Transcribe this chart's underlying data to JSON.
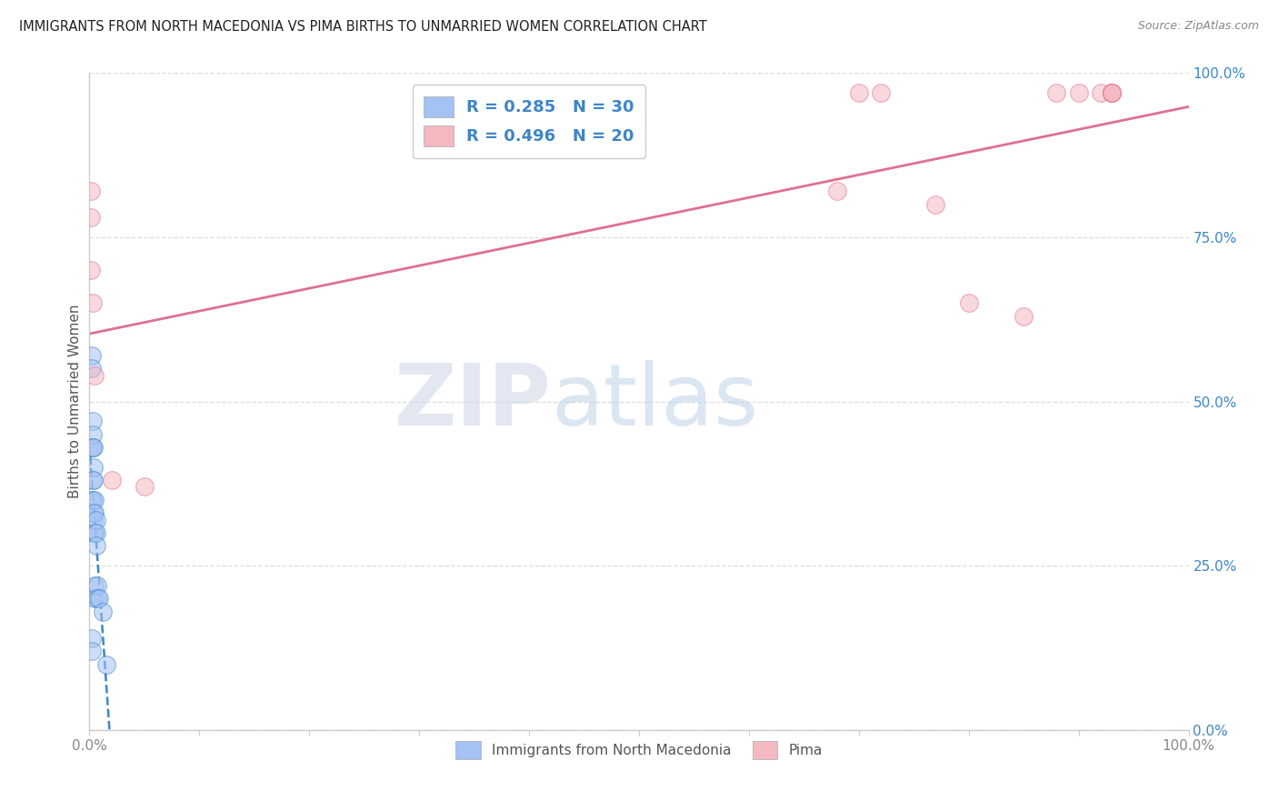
{
  "title": "IMMIGRANTS FROM NORTH MACEDONIA VS PIMA BIRTHS TO UNMARRIED WOMEN CORRELATION CHART",
  "source": "Source: ZipAtlas.com",
  "ylabel": "Births to Unmarried Women",
  "legend_label1": "Immigrants from North Macedonia",
  "legend_label2": "Pima",
  "r1": 0.285,
  "n1": 30,
  "r2": 0.496,
  "n2": 20,
  "blue_color": "#a4c2f4",
  "pink_color": "#f4b8c1",
  "blue_line_color": "#3d85c8",
  "pink_line_color": "#e07090",
  "blue_scatter_x": [
    0.002,
    0.002,
    0.002,
    0.002,
    0.002,
    0.002,
    0.003,
    0.003,
    0.003,
    0.003,
    0.003,
    0.004,
    0.004,
    0.004,
    0.004,
    0.004,
    0.004,
    0.005,
    0.005,
    0.005,
    0.005,
    0.005,
    0.006,
    0.006,
    0.006,
    0.007,
    0.007,
    0.009,
    0.012,
    0.015
  ],
  "blue_scatter_y": [
    0.57,
    0.55,
    0.43,
    0.35,
    0.14,
    0.12,
    0.47,
    0.45,
    0.43,
    0.38,
    0.35,
    0.43,
    0.4,
    0.38,
    0.33,
    0.32,
    0.3,
    0.35,
    0.33,
    0.3,
    0.22,
    0.2,
    0.32,
    0.3,
    0.28,
    0.22,
    0.2,
    0.2,
    0.18,
    0.1
  ],
  "pink_scatter_x": [
    0.001,
    0.001,
    0.001,
    0.003,
    0.005,
    0.02,
    0.05,
    0.68,
    0.7,
    0.72,
    0.77,
    0.8,
    0.85,
    0.88,
    0.9,
    0.92,
    0.93,
    0.93,
    0.93,
    0.93
  ],
  "pink_scatter_y": [
    0.82,
    0.78,
    0.7,
    0.65,
    0.54,
    0.38,
    0.37,
    0.82,
    0.97,
    0.97,
    0.8,
    0.65,
    0.63,
    0.97,
    0.97,
    0.97,
    0.97,
    0.97,
    0.97,
    0.97
  ],
  "watermark_zip": "ZIP",
  "watermark_atlas": "atlas",
  "xlim": [
    0.0,
    1.0
  ],
  "ylim": [
    0.0,
    1.0
  ],
  "grid_color": "#dddddd",
  "background_color": "#ffffff",
  "title_color": "#222222",
  "source_color": "#888888",
  "ylabel_color": "#555555",
  "tick_color": "#888888",
  "right_tick_color": "#3d85c8"
}
